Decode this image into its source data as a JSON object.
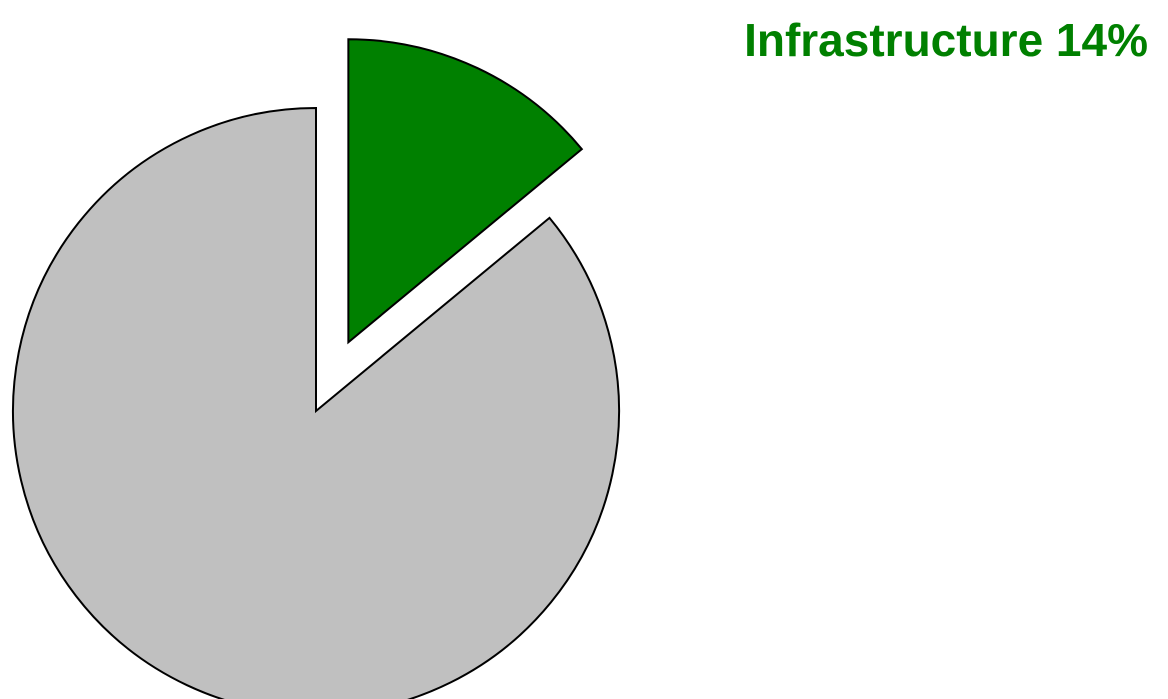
{
  "chart_data": {
    "type": "pie",
    "slices": [
      {
        "label": "Infrastructure",
        "value": 14,
        "color": "#008000",
        "exploded": true,
        "label_shown": true,
        "display_text": "Infrastructure 14%"
      },
      {
        "label": "",
        "value": 86,
        "color": "#c0c0c0",
        "exploded": false,
        "label_shown": false,
        "display_text": ""
      }
    ],
    "start_angle_deg": 0,
    "direction": "clockwise"
  }
}
